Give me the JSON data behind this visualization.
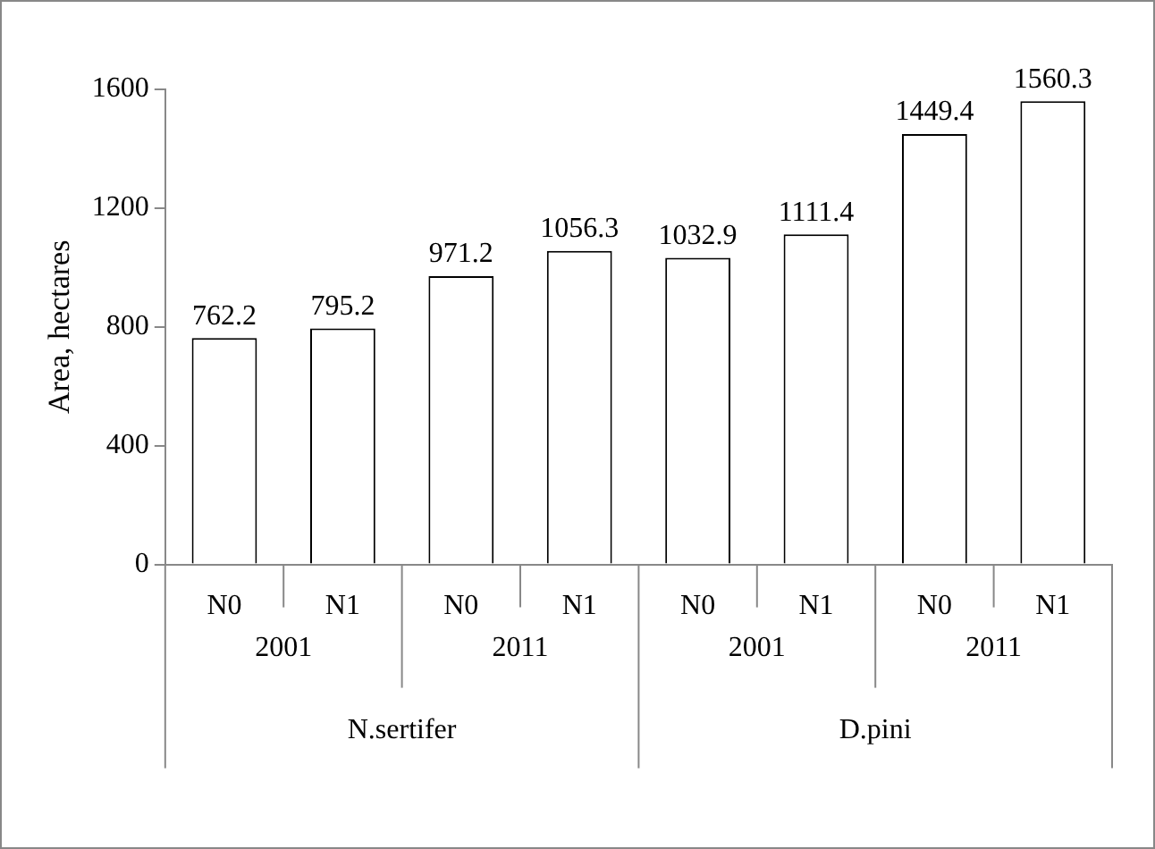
{
  "chart_data": {
    "type": "bar",
    "ylabel": "Area, hectares",
    "categories": [
      "N0",
      "N1",
      "N0",
      "N1",
      "N0",
      "N1",
      "N0",
      "N1"
    ],
    "values": [
      762.2,
      795.2,
      971.2,
      1056.3,
      1032.9,
      1111.4,
      1449.4,
      1560.3
    ],
    "color": "#ffffff",
    "ylim": [
      0,
      1600
    ],
    "yticks": [
      0,
      400,
      800,
      1200,
      1600
    ],
    "grid": false,
    "legend": false,
    "data_labels": true,
    "annotations": [
      "2001",
      "2011",
      "2001",
      "2011",
      "N.sertifer",
      "D.pini"
    ]
  }
}
